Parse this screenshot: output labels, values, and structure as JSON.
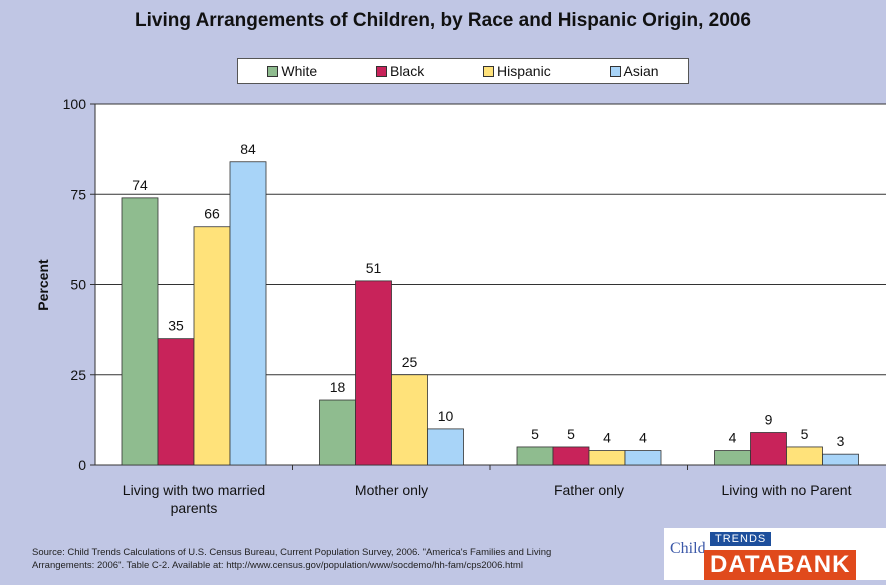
{
  "chart_data": {
    "type": "bar",
    "title": "Living Arrangements of Children, by Race and Hispanic Origin, 2006",
    "ylabel": "Percent",
    "xlabel": "",
    "ylim": [
      0,
      100
    ],
    "yticks": [
      0,
      25,
      50,
      75,
      100
    ],
    "grid": true,
    "legend_position": "top",
    "categories": [
      [
        "Living with two married",
        "parents"
      ],
      [
        "Mother only"
      ],
      [
        "Father only"
      ],
      [
        "Living with no Parent"
      ]
    ],
    "series": [
      {
        "name": "White",
        "color": "#8fbc8f",
        "values": [
          74,
          18,
          5,
          4
        ]
      },
      {
        "name": "Black",
        "color": "#c8235a",
        "values": [
          35,
          51,
          5,
          9
        ]
      },
      {
        "name": "Hispanic",
        "color": "#ffe27a",
        "values": [
          66,
          25,
          4,
          5
        ]
      },
      {
        "name": "Asian",
        "color": "#a8d4f8",
        "values": [
          84,
          10,
          4,
          3
        ]
      }
    ]
  },
  "source_lines": [
    "Source: Child Trends Calculations of U.S. Census Bureau, Current Population Survey,  2006.  \"America's Families and Living",
    "Arrangements: 2006\".  Table C-2.  Available at: http://www.census.gov/population/www/socdemo/hh-fam/cps2006.html"
  ],
  "logo": {
    "child": "Child",
    "trends": "TRENDS",
    "databank": "DATABANK"
  }
}
